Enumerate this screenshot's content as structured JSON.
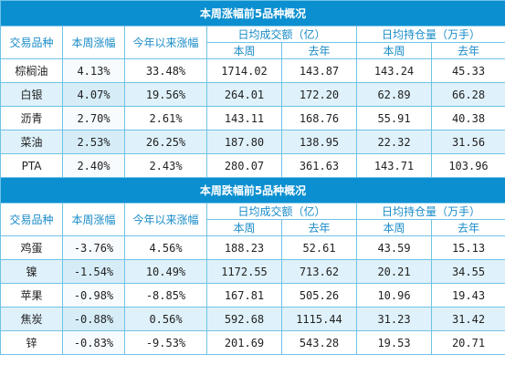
{
  "headers": {
    "variety": "交易品种",
    "weekly_change": "本周涨幅",
    "ytd_change": "今年以来涨幅",
    "turnover_group": "日均成交额（亿）",
    "oi_group": "日均持仓量（万手）",
    "this_week": "本周",
    "last_year": "去年"
  },
  "top_gainers": {
    "title": "本周涨幅前5品种概况",
    "change_header": "本周涨幅",
    "rows": [
      {
        "name": "棕榈油",
        "week": "4.13%",
        "ytd": "33.48%",
        "turn_now": "1714.02",
        "turn_prev": "143.87",
        "oi_now": "143.24",
        "oi_prev": "45.33"
      },
      {
        "name": "白银",
        "week": "4.07%",
        "ytd": "19.56%",
        "turn_now": "264.01",
        "turn_prev": "172.20",
        "oi_now": "62.89",
        "oi_prev": "66.28"
      },
      {
        "name": "沥青",
        "week": "2.70%",
        "ytd": "2.61%",
        "turn_now": "143.11",
        "turn_prev": "168.76",
        "oi_now": "55.91",
        "oi_prev": "40.38"
      },
      {
        "name": "菜油",
        "week": "2.53%",
        "ytd": "26.25%",
        "turn_now": "187.80",
        "turn_prev": "138.95",
        "oi_now": "22.32",
        "oi_prev": "31.56"
      },
      {
        "name": "PTA",
        "week": "2.40%",
        "ytd": "2.43%",
        "turn_now": "280.07",
        "turn_prev": "361.63",
        "oi_now": "143.71",
        "oi_prev": "103.96"
      }
    ]
  },
  "top_losers": {
    "title": "本周跌幅前5品种概况",
    "change_header": "本周涨幅",
    "rows": [
      {
        "name": "鸡蛋",
        "week": "-3.76%",
        "ytd": "4.56%",
        "turn_now": "188.23",
        "turn_prev": "52.61",
        "oi_now": "43.59",
        "oi_prev": "15.13"
      },
      {
        "name": "镍",
        "week": "-1.54%",
        "ytd": "10.49%",
        "turn_now": "1172.55",
        "turn_prev": "713.62",
        "oi_now": "20.21",
        "oi_prev": "34.55"
      },
      {
        "name": "苹果",
        "week": "-0.98%",
        "ytd": "-8.85%",
        "turn_now": "167.81",
        "turn_prev": "505.26",
        "oi_now": "10.96",
        "oi_prev": "19.43"
      },
      {
        "name": "焦炭",
        "week": "-0.88%",
        "ytd": "0.56%",
        "turn_now": "592.68",
        "turn_prev": "1115.44",
        "oi_now": "31.23",
        "oi_prev": "31.42"
      },
      {
        "name": "锌",
        "week": "-0.83%",
        "ytd": "-9.53%",
        "turn_now": "201.69",
        "turn_prev": "543.28",
        "oi_now": "19.53",
        "oi_prev": "20.71"
      }
    ]
  }
}
